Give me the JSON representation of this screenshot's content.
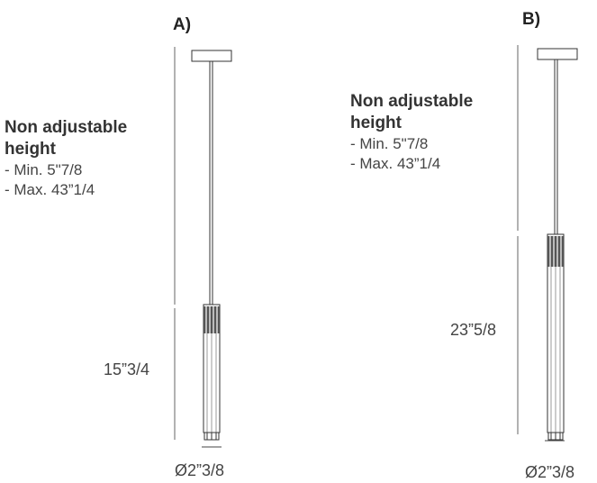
{
  "variant_a": {
    "label": "A)",
    "heading_line1": "Non adjustable",
    "heading_line2": "height",
    "min": "- Min.  5\"7/8",
    "max": "- Max. 43”1/4",
    "body_height": "15”3/4",
    "diameter": "Ø2”3/8"
  },
  "variant_b": {
    "label": "B)",
    "heading_line1": "Non adjustable",
    "heading_line2": "height",
    "min": "- Min.  5\"7/8",
    "max": "- Max. 43”1/4",
    "body_height": "23”5/8",
    "diameter": "Ø2”3/8"
  }
}
